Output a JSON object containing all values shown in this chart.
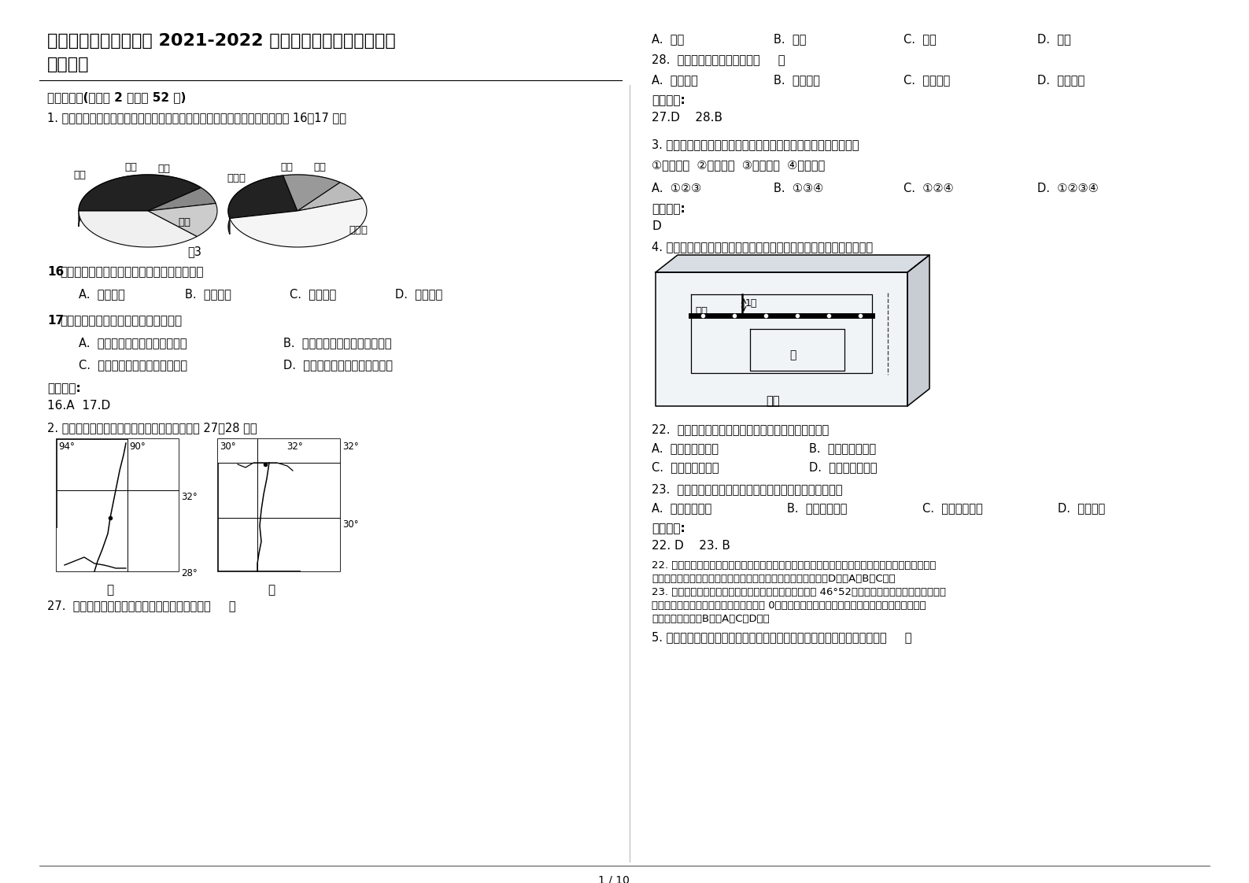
{
  "title_line1": "四川省泸州市震东中学 2021-2022 学年高二地理下学期期末试",
  "title_line2": "卷含解析",
  "bg_color": "#ffffff",
  "text_color": "#000000",
  "page_number": "1 / 10",
  "section_header": "一、选择题(每小题 2 分，共 52 分)",
  "q1_intro": "1. 下图为我国江南丘陵某地地形结构和农业用地结构的饼状图。对比分析回答 16～17 题。",
  "q16_text": "16、造成该地农业用地结构不合理的主要原因是",
  "q16_opts": [
    "A.  过度开垦",
    "B.  过度放牧",
    "C.  过度围垦",
    "D.  过度养殖"
  ],
  "q17_text": "17、该地实现农业可持续发展的出路在于",
  "q17_opts": [
    "A.  缓坡退耕，发展大牧场放牧业",
    "B.  修建梯田，扩大水稻种植面积",
    "C.  全面封山育林，改善生态环境",
    "D.  调整农业结构，发展立体农业"
  ],
  "ans1": "参考答案:",
  "ans1_val": "16.A  17.D",
  "q2_intro": "2. 甲、乙两图为世界著名的三角洲图。读图回答 27～28 题。",
  "q27_text": "27.  图甲中河流三角洲位于乙图中河流三角洲的（     ）",
  "q27_opts": [
    "A.  东南",
    "B.  西北",
    "C.  东北",
    "D.  西南"
  ],
  "q28_text": "28.  甲乙两图所采用的比例尺（     ）",
  "q28_opts": [
    "A.  甲大于乙",
    "B.  乙大于甲",
    "C.  甲乙相同",
    "D.  无法判断"
  ],
  "ans2_val": "27.D    28.B",
  "q3_intro": "3. 下列事物和技能中，能为地球村村民之间提供快捷信息交流的是",
  "q3_sub": "①手机短信  ②电子邮件  ③视频聊天  ④移动电话",
  "q3_opts": [
    "A.  ①②③",
    "B.  ①③④",
    "C.  ①②④",
    "D.  ①②③④"
  ],
  "ans3_val": "D",
  "q4_intro": "4. 我国某小区阳台统一安装上下伸缩式晾衣架。读图，回答下面小题。",
  "q22_text": "22.  与武汉相比较，北京正午时悬挂晾衣架的绳索长度",
  "q22_opts": [
    "A.  冬季长，夏季短",
    "B.  冬季短，夏季长",
    "C.  冬季短，夏季长",
    "D.  冬季短，夏季短"
  ],
  "q23_text": "23.  北京与武汉比较，正午时夏天绳索长度伸缩变化的幅度",
  "q23_opts": [
    "A.  北京大于武汉",
    "B.  北京小于武汉",
    "C.  北京等于武汉",
    "D.  无法比较"
  ],
  "ans22_val": "22. D    23. B",
  "explain22_1": "22. 正午太阳高度越大，悬挂晾衣架的绳索就越长，与武汉相比较，北京纬度高，一年中正午太阳高",
  "explain22_2": "度都比广州小，正午时悬挂晾衣架的绳索长度冬季短，夏季短，D对，A、B、C错。",
  "explain23_1": "23. 北京和武汉的冬夏正午太阳高度变化幅度相同，都是 46°52。而北京冬夏正午太阳高度都小于",
  "explain23_2": "武汉，绳索是可以收起的，收起时长度为 0，北京与武汉相比较，北京冬夏正午绳索长度伸缩变化",
  "explain23_3": "的幅度小于武汉，B对，A、C、D错。",
  "q5_intro": "5. 铁路建设受地理环境的影响。下列铁路对应的线路特征描述最合适的是（     ）"
}
